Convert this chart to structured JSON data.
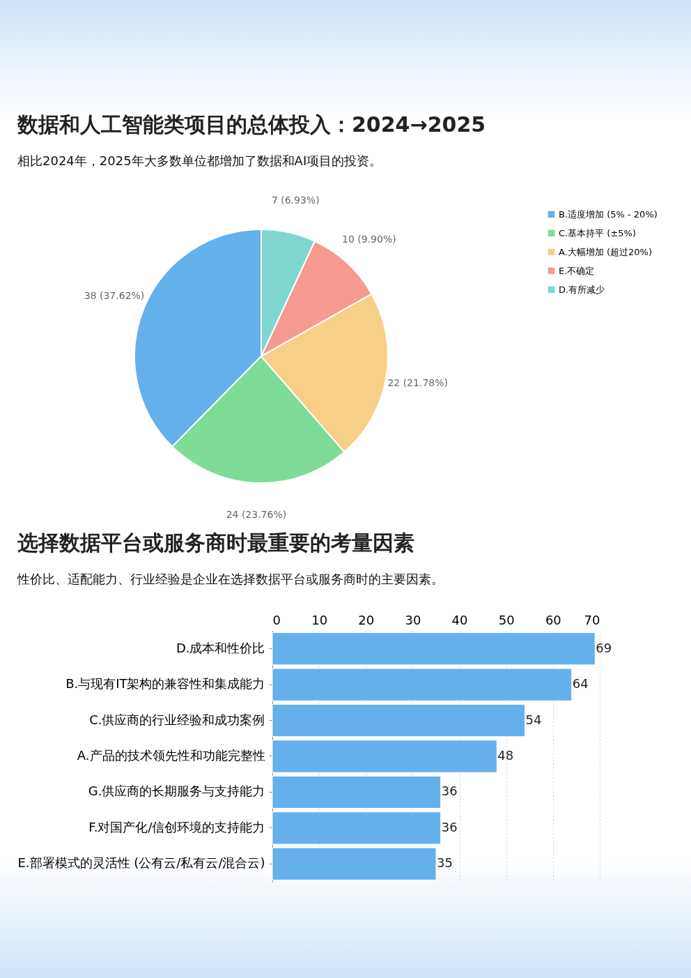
{
  "chart_data": [
    {
      "type": "pie",
      "title": "数据和人工智能类项目的总体投入：2024→2025",
      "subtitle": "相比2024年，2025年大多数单位都增加了数据和AI项目的投资。",
      "categories": [
        "B.适度增加 (5% - 20%)",
        "C.基本持平 (±5%)",
        "A.大幅增加 (超过20%)",
        "E.不确定",
        "D.有所减少"
      ],
      "values": [
        38,
        24,
        22,
        10,
        7
      ],
      "colors": [
        "#64b0eb",
        "#7edc96",
        "#f7cf88",
        "#f59b8f",
        "#7fd7d0"
      ],
      "value_labels": [
        "38 (37.62%)",
        "24 (23.76%)",
        "22 (21.78%)",
        "10 (9.90%)",
        "7 (6.93%)"
      ],
      "legend": "right"
    },
    {
      "type": "bar",
      "orientation": "horizontal",
      "title": "选择数据平台或服务商时最重要的考量因素",
      "subtitle": "性价比、适配能力、行业经验是企业在选择数据平台或服务商时的主要因素。",
      "categories": [
        "D.成本和性价比",
        "B.与现有IT架构的兼容性和集成能力",
        "C.供应商的行业经验和成功案例",
        "A.产品的技术领先性和功能完整性",
        "G.供应商的长期服务与支持能力",
        "F.对国产化/信创环境的支持能力",
        "E.部署模式的灵活性 (公有云/私有云/混合云)"
      ],
      "values": [
        69,
        64,
        54,
        48,
        36,
        36,
        35
      ],
      "color": "#64b0eb",
      "xlim": [
        0,
        70
      ],
      "xticks": [
        0,
        10,
        20,
        30,
        40,
        50,
        60,
        70
      ],
      "grid": "x",
      "data_labels": true
    }
  ]
}
